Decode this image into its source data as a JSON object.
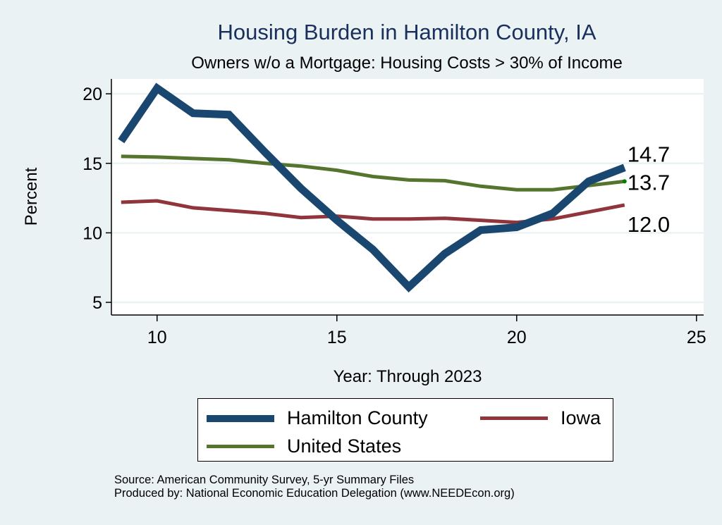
{
  "chart_data": {
    "type": "line",
    "title": "Housing Burden in Hamilton County, IA",
    "subtitle": "Owners w/o a Mortgage: Housing Costs > 30% of Income",
    "xlabel": "Year: Through 2023",
    "ylabel": "Percent",
    "xlim": [
      8.73,
      25.2
    ],
    "ylim": [
      4.09,
      21.07
    ],
    "xticks": [
      10,
      15,
      20,
      25
    ],
    "yticks": [
      5,
      10,
      15,
      20
    ],
    "grid": "horizontal",
    "legend_position": "bottom",
    "x": [
      9,
      10,
      11,
      12,
      13,
      14,
      15,
      16,
      17,
      18,
      19,
      20,
      21,
      22,
      23
    ],
    "series": [
      {
        "name": "Hamilton County",
        "color": "#1a476f",
        "values": [
          16.6,
          20.4,
          18.6,
          18.5,
          15.8,
          13.2,
          10.9,
          8.8,
          6.1,
          8.5,
          10.2,
          10.4,
          11.4,
          13.7,
          14.7
        ],
        "end_label": "14.7"
      },
      {
        "name": "Iowa",
        "color": "#90353b",
        "values": [
          12.2,
          12.3,
          11.8,
          11.6,
          11.4,
          11.1,
          11.2,
          11.0,
          11.0,
          11.05,
          10.9,
          10.75,
          11.0,
          11.5,
          12.0
        ],
        "end_label": "12.0"
      },
      {
        "name": "United States",
        "color": "#55752f",
        "values": [
          15.5,
          15.45,
          15.35,
          15.25,
          15.0,
          14.8,
          14.5,
          14.05,
          13.8,
          13.75,
          13.35,
          13.1,
          13.1,
          13.4,
          13.7
        ],
        "end_label": "13.7"
      }
    ]
  },
  "footer": {
    "source": "Source: American Community Survey, 5-yr Summary Files",
    "produced_by": "Produced by: National Economic Education Delegation (www.NEEDEcon.org)"
  }
}
